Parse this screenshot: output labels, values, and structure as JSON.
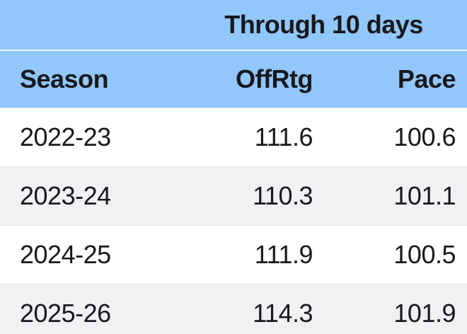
{
  "table": {
    "title": "Through 10 days",
    "columns": [
      "Season",
      "OffRtg",
      "Pace"
    ],
    "rows": [
      {
        "season": "2022-23",
        "offrtg": "111.6",
        "pace": "100.6"
      },
      {
        "season": "2023-24",
        "offrtg": "110.3",
        "pace": "101.1"
      },
      {
        "season": "2024-25",
        "offrtg": "111.9",
        "pace": "100.5"
      },
      {
        "season": "2025-26",
        "offrtg": "114.3",
        "pace": "101.9"
      }
    ]
  },
  "colors": {
    "header_blue": "#92c7fc",
    "header_divider": "#e7f2fe",
    "row_white": "#ffffff",
    "row_gray": "#f0f1f3",
    "row_border": "#e4e5e9",
    "text": "#17191d"
  },
  "chart_data": {
    "type": "table",
    "title": "Through 10 days",
    "columns": [
      "Season",
      "OffRtg",
      "Pace"
    ],
    "rows": [
      [
        "2022-23",
        111.6,
        100.6
      ],
      [
        "2023-24",
        110.3,
        101.1
      ],
      [
        "2024-25",
        111.9,
        100.5
      ],
      [
        "2025-26",
        114.3,
        101.9
      ]
    ],
    "layout_hints": {
      "season_column_align": "left",
      "numeric_columns_align": "right",
      "zebra_striping": true,
      "header_background": "#92c7fc"
    }
  }
}
